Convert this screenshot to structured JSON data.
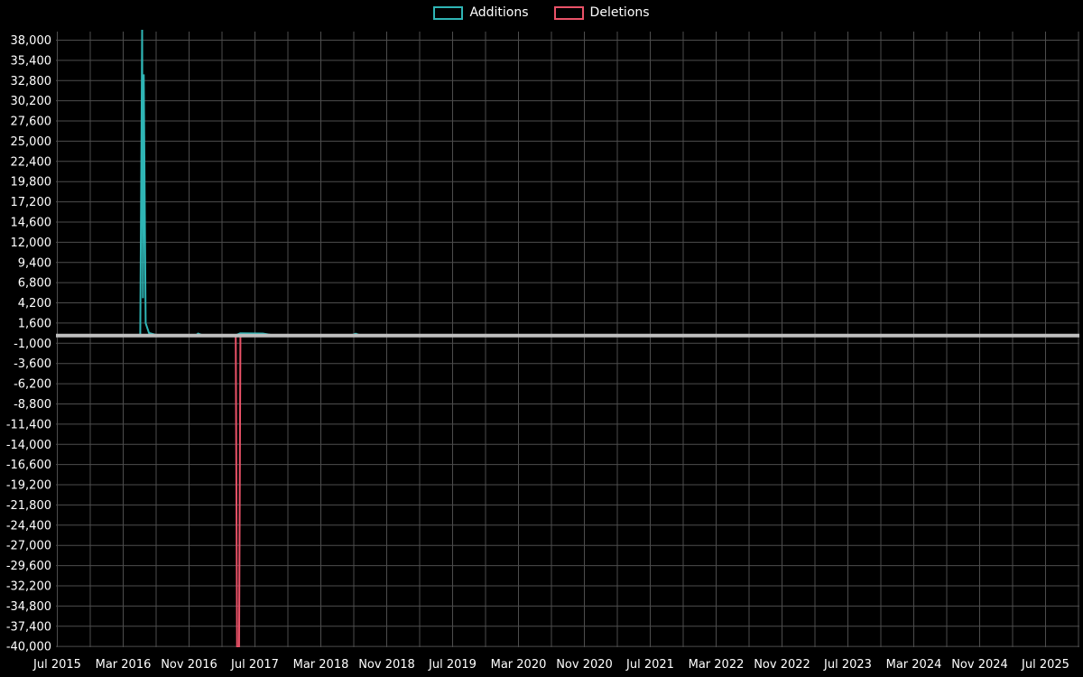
{
  "page": {
    "background": "#000000",
    "text_color": "#ffffff",
    "grid_color": "#4d4d4d"
  },
  "legend": {
    "items": [
      {
        "label": "Additions",
        "color": "#2fb5b5"
      },
      {
        "label": "Deletions",
        "color": "#ea5268"
      }
    ]
  },
  "axes": {
    "y_labels": [
      "38,000",
      "35,400",
      "32,800",
      "30,200",
      "27,600",
      "25,000",
      "22,400",
      "19,800",
      "17,200",
      "14,600",
      "12,000",
      "9,400",
      "6,800",
      "4,200",
      "1,600",
      "-1,000",
      "-3,600",
      "-6,200",
      "-8,800",
      "-11,400",
      "-14,000",
      "-16,600",
      "-19,200",
      "-21,800",
      "-24,400",
      "-27,000",
      "-29,600",
      "-32,200",
      "-34,800",
      "-37,400",
      "-40,000"
    ],
    "x_labels": [
      "Jul 2015",
      "Mar 2016",
      "Nov 2016",
      "Jul 2017",
      "Mar 2018",
      "Nov 2018",
      "Jul 2019",
      "Mar 2020",
      "Nov 2020",
      "Jul 2021",
      "Mar 2022",
      "Nov 2022",
      "Jul 2023",
      "Mar 2024",
      "Nov 2024",
      "Jul 2025"
    ]
  },
  "chart_data": {
    "type": "line",
    "title": "",
    "legend_entries": [
      "Additions",
      "Deletions"
    ],
    "legend_position": "top-center",
    "grid": true,
    "grid_color": "#4d4d4d",
    "x_tick_labels": [
      "Jul 2015",
      "Mar 2016",
      "Nov 2016",
      "Jul 2017",
      "Mar 2018",
      "Nov 2018",
      "Jul 2019",
      "Mar 2020",
      "Nov 2020",
      "Jul 2021",
      "Mar 2022",
      "Nov 2022",
      "Jul 2023",
      "Mar 2024",
      "Nov 2024",
      "Jul 2025"
    ],
    "x_tick_interval_months": 8,
    "grid_interval_months": 4,
    "y_tick_values": [
      38000,
      35400,
      32800,
      30200,
      27600,
      25000,
      22400,
      19800,
      17200,
      14600,
      12000,
      9400,
      6800,
      4200,
      1600,
      -1000,
      -3600,
      -6200,
      -8800,
      -11400,
      -14000,
      -16600,
      -19200,
      -21800,
      -24400,
      -27000,
      -29600,
      -32200,
      -34800,
      -37400,
      -40000
    ],
    "y_tick_step": 2600,
    "ylim": [
      -40100,
      39100
    ],
    "xlim": [
      "2015-07",
      "2025-11"
    ],
    "series": [
      {
        "name": "Additions",
        "color": "#2fb5b5",
        "points": [
          [
            "2015-07-01",
            0
          ],
          [
            "2016-05-03",
            0
          ],
          [
            "2016-05-10",
            39600
          ],
          [
            "2016-05-13",
            4800
          ],
          [
            "2016-05-16",
            33600
          ],
          [
            "2016-05-23",
            1600
          ],
          [
            "2016-06-05",
            320
          ],
          [
            "2016-07-03",
            60
          ],
          [
            "2016-11-27",
            60
          ],
          [
            "2016-12-04",
            260
          ],
          [
            "2016-12-18",
            60
          ],
          [
            "2017-04-23",
            60
          ],
          [
            "2017-05-07",
            280
          ],
          [
            "2017-07-30",
            260
          ],
          [
            "2017-09-03",
            60
          ],
          [
            "2018-06-24",
            60
          ],
          [
            "2018-07-08",
            230
          ],
          [
            "2018-07-22",
            60
          ],
          [
            "2025-11-01",
            60
          ]
        ]
      },
      {
        "name": "Deletions",
        "color": "#ea5268",
        "points": [
          [
            "2015-07-01",
            0
          ],
          [
            "2017-04-21",
            0
          ],
          [
            "2017-04-26",
            -40050
          ],
          [
            "2017-05-03",
            -40050
          ],
          [
            "2017-05-08",
            0
          ],
          [
            "2025-11-01",
            0
          ]
        ]
      }
    ],
    "zero_line": {
      "value": 0,
      "color": "#bfbfbf",
      "width": 4
    }
  }
}
